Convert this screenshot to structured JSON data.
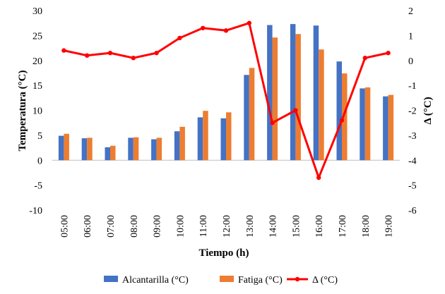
{
  "chart_data": {
    "type": "bar",
    "title": "",
    "xlabel": "Tiempo (h)",
    "ylabel": "Temperatura (°C)",
    "y2label": "Δ (°C)",
    "ylim": [
      -10,
      30
    ],
    "y2lim": [
      -6,
      2
    ],
    "yticks": [
      "30",
      "25",
      "20",
      "15",
      "10",
      "5",
      "0",
      "-5",
      "-10"
    ],
    "y2ticks": [
      "2",
      "1",
      "0",
      "-1",
      "-2",
      "-3",
      "-4",
      "-5",
      "-6"
    ],
    "grid": false,
    "legend_position": "bottom",
    "categories": [
      "05:00",
      "06:00",
      "07:00",
      "08:00",
      "09:00",
      "10:00",
      "11:00",
      "12:00",
      "13:00",
      "14:00",
      "15:00",
      "16:00",
      "17:00",
      "18:00",
      "19:00"
    ],
    "series": [
      {
        "name": "Alcantarilla (°C)",
        "type": "bar",
        "axis": "left",
        "color": "#4472c4",
        "values": [
          4.9,
          4.4,
          2.6,
          4.5,
          4.2,
          5.8,
          8.6,
          8.4,
          17.1,
          27.1,
          27.3,
          27.0,
          19.8,
          14.4,
          12.8
        ]
      },
      {
        "name": "Fatiga (°C)",
        "type": "bar",
        "axis": "left",
        "color": "#ed7d31",
        "values": [
          5.3,
          4.5,
          2.9,
          4.6,
          4.5,
          6.7,
          9.9,
          9.6,
          18.5,
          24.6,
          25.3,
          22.2,
          17.4,
          14.6,
          13.1
        ]
      },
      {
        "name": "Δ (°C)",
        "type": "line",
        "axis": "right",
        "color": "#ff0000",
        "values": [
          0.4,
          0.2,
          0.3,
          0.1,
          0.3,
          0.9,
          1.3,
          1.2,
          1.5,
          -2.5,
          -2.0,
          -4.7,
          -2.4,
          0.1,
          0.3
        ]
      }
    ]
  }
}
